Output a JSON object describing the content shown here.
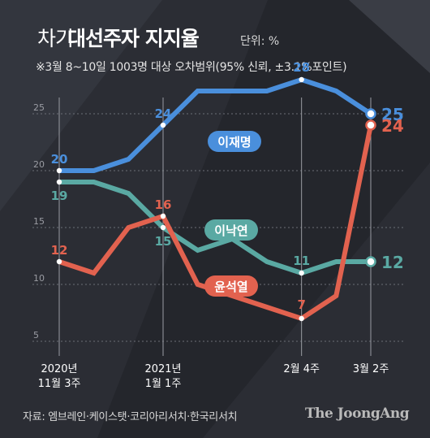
{
  "header": {
    "title_prefix": "차기",
    "title_main": "대선주자 지지율",
    "unit": "단위: %",
    "subtitle": "※3월  8~10일  1003명 대상 오차범위(95% 신뢰, ±3.1%포인트)"
  },
  "footer": {
    "source": "자료: 엠브레인·케이스탯·코리아리서치·한국리서치",
    "brand": "The JoongAng"
  },
  "colors": {
    "background": "#2b2d34",
    "grid": "#6b6e76",
    "text": "#ffffff",
    "lee_jaemyung": "#4a8fdc",
    "lee_nakyon": "#5aa9a3",
    "yoon_seokyeol": "#e2624f"
  },
  "chart_data": {
    "type": "line",
    "title": "",
    "xlabel": "",
    "ylabel": "",
    "ylim": [
      5,
      28
    ],
    "yticks": [
      5,
      10,
      15,
      20,
      25
    ],
    "x_tick_labels": [
      {
        "index": 0,
        "line1": "2020년",
        "line2": "11월 3주"
      },
      {
        "index": 3,
        "line1": "2021년",
        "line2": "1월 1주"
      },
      {
        "index": 7,
        "line1": "2월 4주",
        "line2": ""
      },
      {
        "index": 9,
        "line1": "3월 2주",
        "line2": ""
      }
    ],
    "n_points": 10,
    "series": [
      {
        "name": "이재명",
        "color": "#4a8fdc",
        "values": [
          20,
          20,
          21,
          24,
          27,
          27,
          27,
          28,
          27,
          25
        ],
        "labeled": [
          0,
          3,
          7,
          9
        ],
        "end_label": "25"
      },
      {
        "name": "이낙연",
        "color": "#5aa9a3",
        "values": [
          19,
          19,
          18,
          15,
          13,
          14,
          12,
          11,
          12,
          12
        ],
        "labeled": [
          0,
          3,
          7,
          9
        ],
        "end_label": "12"
      },
      {
        "name": "윤석열",
        "color": "#e2624f",
        "values": [
          12,
          11,
          15,
          16,
          10,
          9,
          8,
          7,
          9,
          24
        ],
        "labeled": [
          0,
          3,
          7,
          9
        ],
        "end_label": "24"
      }
    ]
  }
}
